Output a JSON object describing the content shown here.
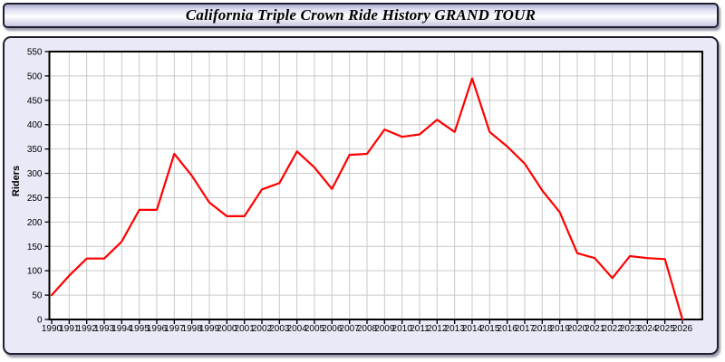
{
  "window": {
    "title": "California Triple Crown Ride History GRAND TOUR"
  },
  "chart_data": {
    "type": "line",
    "title": "California Triple Crown Ride History GRAND TOUR",
    "xlabel": "",
    "ylabel": "Riders",
    "ylim": [
      0,
      550
    ],
    "ytick_step": 50,
    "yticks": [
      0,
      50,
      100,
      150,
      200,
      250,
      300,
      350,
      400,
      450,
      500,
      550
    ],
    "grid": true,
    "legend_position": "none",
    "series_name": "Riders",
    "x": [
      1990,
      1991,
      1992,
      1993,
      1994,
      1995,
      1996,
      1997,
      1998,
      1999,
      2000,
      2001,
      2002,
      2003,
      2004,
      2005,
      2006,
      2007,
      2008,
      2009,
      2010,
      2011,
      2012,
      2013,
      2014,
      2015,
      2016,
      2017,
      2018,
      2019,
      2020,
      2021,
      2022,
      2023,
      2024,
      2025,
      2026
    ],
    "values": [
      50,
      90,
      125,
      125,
      160,
      225,
      225,
      340,
      295,
      240,
      212,
      212,
      267,
      280,
      345,
      312,
      268,
      338,
      340,
      390,
      375,
      380,
      410,
      385,
      495,
      385,
      355,
      320,
      265,
      220,
      136,
      126,
      85,
      130,
      126,
      124,
      0
    ]
  },
  "colors": {
    "line": "#ff0000",
    "panel_background": "#e9e9f7",
    "panel_border": "#1f1f2e",
    "plot_background": "#ffffff",
    "gridline": "#c9c9c9",
    "axis": "#000000",
    "label_text": "#000000",
    "title_gradient_top": "#a8a8cc",
    "title_gradient_middle": "#ffffff",
    "title_gradient_bottom": "#c6c6e2"
  }
}
